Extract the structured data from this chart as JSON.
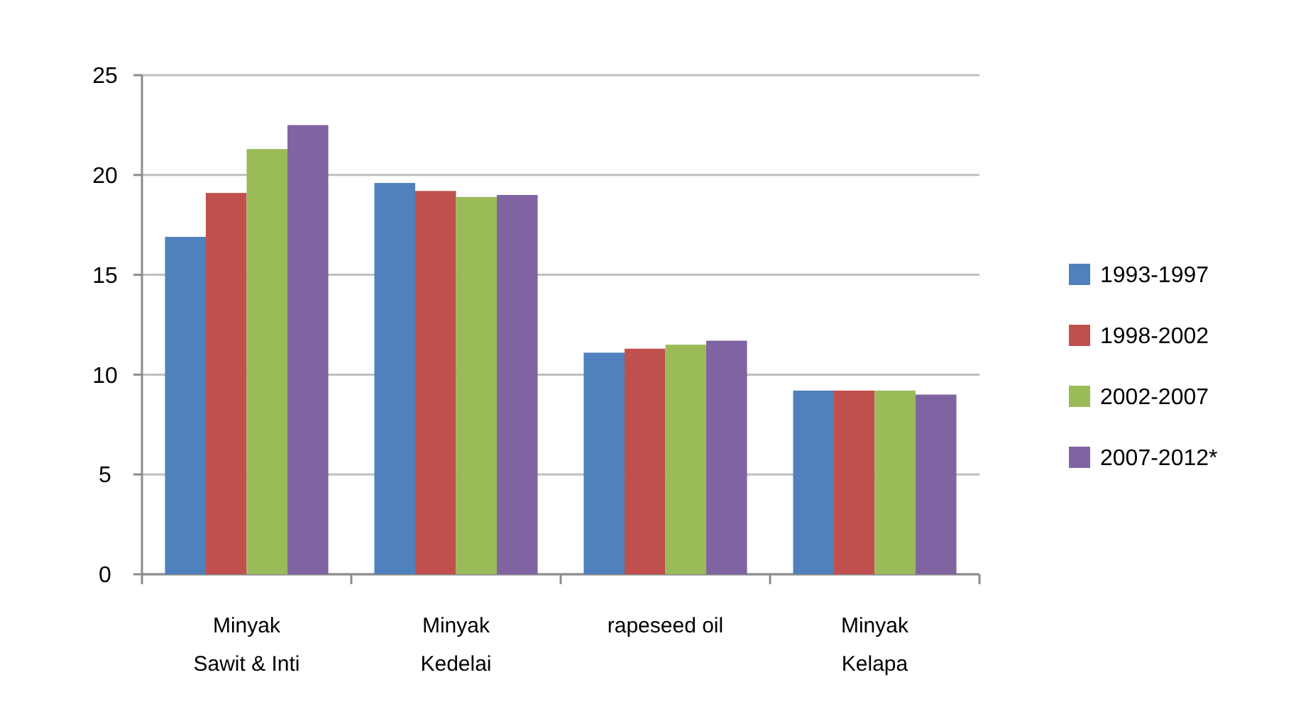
{
  "chart_data": {
    "type": "bar",
    "categories": [
      "Minyak\nSawit & Inti",
      "Minyak\nKedelai",
      "rapeseed oil",
      "Minyak\nKelapa"
    ],
    "series": [
      {
        "name": "1993-1997",
        "color": "#4f81bd",
        "values": [
          16.9,
          19.6,
          11.1,
          9.2
        ]
      },
      {
        "name": "1998-2002",
        "color": "#c0504d",
        "values": [
          19.1,
          19.2,
          11.3,
          9.2
        ]
      },
      {
        "name": "2002-2007",
        "color": "#9bbb59",
        "values": [
          21.3,
          18.9,
          11.5,
          9.2
        ]
      },
      {
        "name": "2007-2012*",
        "color": "#8064a2",
        "values": [
          22.5,
          19.0,
          11.7,
          9.0
        ]
      }
    ],
    "ylim": [
      0,
      25
    ],
    "yticks": [
      0,
      5,
      10,
      15,
      20,
      25
    ],
    "grid": "y",
    "legend": "right"
  }
}
